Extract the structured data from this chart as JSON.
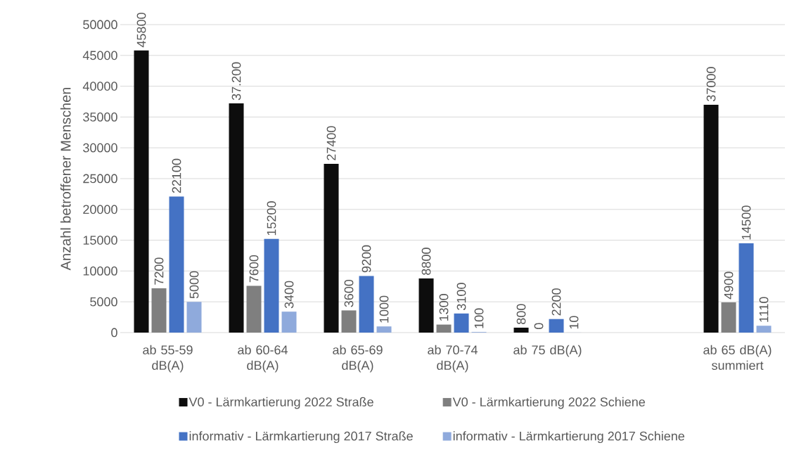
{
  "chart_data": {
    "type": "bar",
    "ylabel": "Anzahl betroffener Menschen",
    "categories": [
      "ab 55-59 dB(A)",
      "ab 60-64 dB(A)",
      "ab 65-69 dB(A)",
      "ab 70-74 dB(A)",
      "ab 75 dB(A)",
      null,
      "ab 65 dB(A) summiert"
    ],
    "series": [
      {
        "name": "V0 - Lärmkartierung 2022 Straße",
        "color": "#0d0d0d",
        "values": [
          45800,
          37200,
          27400,
          8800,
          800,
          null,
          37000
        ],
        "value_labels": [
          "45800",
          "37.200",
          "27400",
          "8800",
          "800",
          null,
          "37000"
        ]
      },
      {
        "name": "V0 - Lärmkartierung 2022 Schiene",
        "color": "#7f7f7f",
        "values": [
          7200,
          7600,
          3600,
          1300,
          0,
          null,
          4900
        ],
        "value_labels": [
          "7200",
          "7600",
          "3600",
          "1300",
          "0",
          null,
          "4900"
        ]
      },
      {
        "name": "informativ - Lärmkartierung 2017 Straße",
        "color": "#4472c4",
        "values": [
          22100,
          15200,
          9200,
          3100,
          2200,
          null,
          14500
        ],
        "value_labels": [
          "22100",
          "15200",
          "9200",
          "3100",
          "2200",
          null,
          "14500"
        ]
      },
      {
        "name": "informativ - Lärmkartierung 2017 Schiene",
        "color": "#8faadc",
        "values": [
          5000,
          3400,
          1000,
          100,
          10,
          null,
          1110
        ],
        "value_labels": [
          "5000",
          "3400",
          "1000",
          "100",
          "10",
          null,
          "1110"
        ]
      }
    ],
    "ylim": [
      0,
      50000
    ],
    "yticks": [
      0,
      5000,
      10000,
      15000,
      20000,
      25000,
      30000,
      35000,
      40000,
      45000,
      50000
    ],
    "grid": "y",
    "legend": "bottom"
  }
}
